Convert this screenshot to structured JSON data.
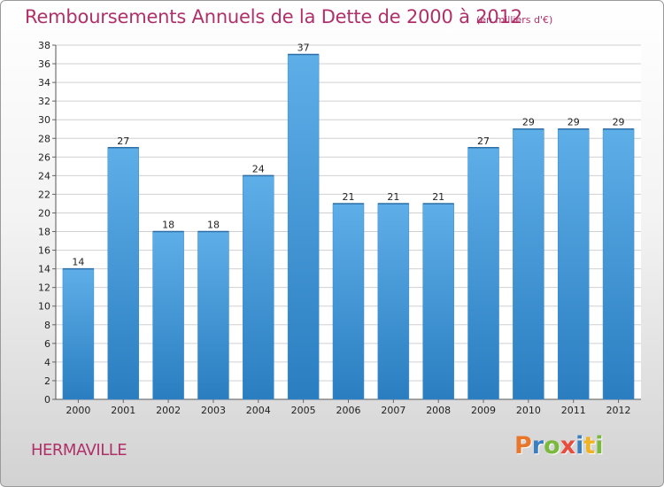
{
  "header": {
    "title": "Remboursements Annuels de la Dette de 2000 à 2012",
    "subtitle": "(en milliers d'€)"
  },
  "footer": {
    "commune": "HERMAVILLE",
    "logo": "Proxiti",
    "logo_colors": [
      "#e8762b",
      "#3a7fc1",
      "#7ab93e",
      "#e84c3d",
      "#3a7fc1",
      "#f0b323",
      "#7ab93e"
    ]
  },
  "colors": {
    "bar_top": "#5eaee8",
    "bar_bottom": "#2a7ec0",
    "grid": "#d0d0d0",
    "title": "#b0306a"
  },
  "chart_data": {
    "type": "bar",
    "title": "Remboursements Annuels de la Dette de 2000 à 2012",
    "subtitle": "(en milliers d'€)",
    "categories": [
      "2000",
      "2001",
      "2002",
      "2003",
      "2004",
      "2005",
      "2006",
      "2007",
      "2008",
      "2009",
      "2010",
      "2011",
      "2012"
    ],
    "values": [
      14,
      27,
      18,
      18,
      24,
      37,
      21,
      21,
      21,
      27,
      29,
      29,
      29
    ],
    "ylim": [
      0,
      38
    ],
    "ytick_step": 2,
    "grid": true
  }
}
